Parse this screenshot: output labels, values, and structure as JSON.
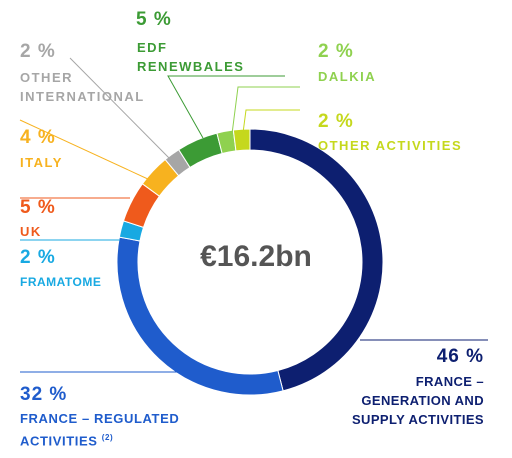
{
  "chart_data": {
    "type": "pie",
    "variant": "donut",
    "center_label": "€16.2bn",
    "slices": [
      {
        "key": "france_generation",
        "name_lines": [
          "FRANCE –",
          "GENERATION AND",
          "SUPPLY ACTIVITIES"
        ],
        "value": 46,
        "pct_text": "46 %",
        "color": "#0d1f70"
      },
      {
        "key": "france_regulated",
        "name_lines": [
          "FRANCE – REGULATED",
          "ACTIVITIES"
        ],
        "footnote": "(2)",
        "value": 32,
        "pct_text": "32 %",
        "color": "#1f5ccc"
      },
      {
        "key": "framatome",
        "name_lines": [
          "FRAMATOME"
        ],
        "value": 2,
        "pct_text": "2 %",
        "color": "#18a9e2"
      },
      {
        "key": "uk",
        "name_lines": [
          "UK"
        ],
        "value": 5,
        "pct_text": "5 %",
        "color": "#ef5a1c"
      },
      {
        "key": "italy",
        "name_lines": [
          "ITALY"
        ],
        "value": 4,
        "pct_text": "4 %",
        "color": "#f7b21f"
      },
      {
        "key": "other_international",
        "name_lines": [
          "OTHER",
          "INTERNATIONAL"
        ],
        "value": 2,
        "pct_text": "2 %",
        "color": "#a6a6a6"
      },
      {
        "key": "edf_renewables",
        "name_lines": [
          "EDF",
          "RENEWBALES"
        ],
        "value": 5,
        "pct_text": "5 %",
        "color": "#3c9b35"
      },
      {
        "key": "dalkia",
        "name_lines": [
          "DALKIA"
        ],
        "value": 2,
        "pct_text": "2 %",
        "color": "#8fd14f"
      },
      {
        "key": "other_activities",
        "name_lines": [
          "OTHER ACTIVITIES"
        ],
        "value": 2,
        "pct_text": "2 %",
        "color": "#c5d81d"
      }
    ]
  }
}
